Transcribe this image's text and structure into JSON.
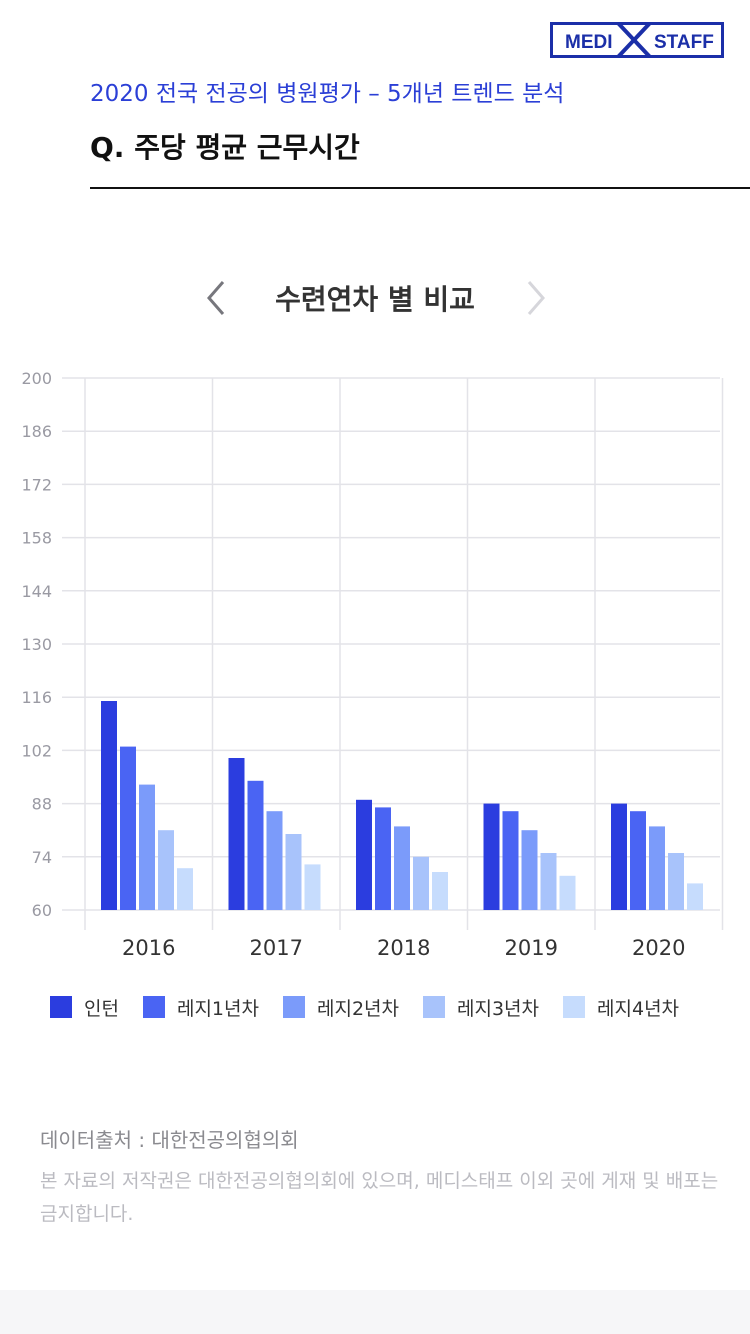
{
  "header": {
    "logo_left": "MEDI",
    "logo_right": "STAFF",
    "subtitle": "2020 전국 전공의 병원평가 – 5개년 트렌드 분석",
    "question": "Q. 주당 평균 근무시간"
  },
  "chart_nav": {
    "heading": "수련연차 별 비교",
    "prev_icon": "chevron-left-icon",
    "next_icon": "chevron-right-icon"
  },
  "chart_data": {
    "type": "bar",
    "categories": [
      "2016",
      "2017",
      "2018",
      "2019",
      "2020"
    ],
    "series": [
      {
        "name": "인턴",
        "color": "#2b3ddf",
        "values": [
          115,
          100,
          89,
          88,
          88
        ]
      },
      {
        "name": "레지1년차",
        "color": "#4a64f3",
        "values": [
          103,
          94,
          87,
          86,
          86
        ]
      },
      {
        "name": "레지2년차",
        "color": "#7b9bfa",
        "values": [
          93,
          86,
          82,
          81,
          82
        ]
      },
      {
        "name": "레지3년차",
        "color": "#a8c3fb",
        "values": [
          81,
          80,
          74,
          75,
          75
        ]
      },
      {
        "name": "레지4년차",
        "color": "#c6dcfd",
        "values": [
          71,
          72,
          70,
          69,
          67
        ]
      }
    ],
    "ylim": [
      60,
      200
    ],
    "yticks": [
      200,
      186,
      172,
      158,
      144,
      130,
      116,
      102,
      88,
      74,
      60
    ],
    "grid": true,
    "legend_position": "bottom"
  },
  "footer": {
    "source": "데이터출처 : 대한전공의협의회",
    "copyright": "본 자료의 저작권은 대한전공의협의회에 있으며, 메디스태프 이외 곳에 게재 및 배포는 금지합니다."
  }
}
